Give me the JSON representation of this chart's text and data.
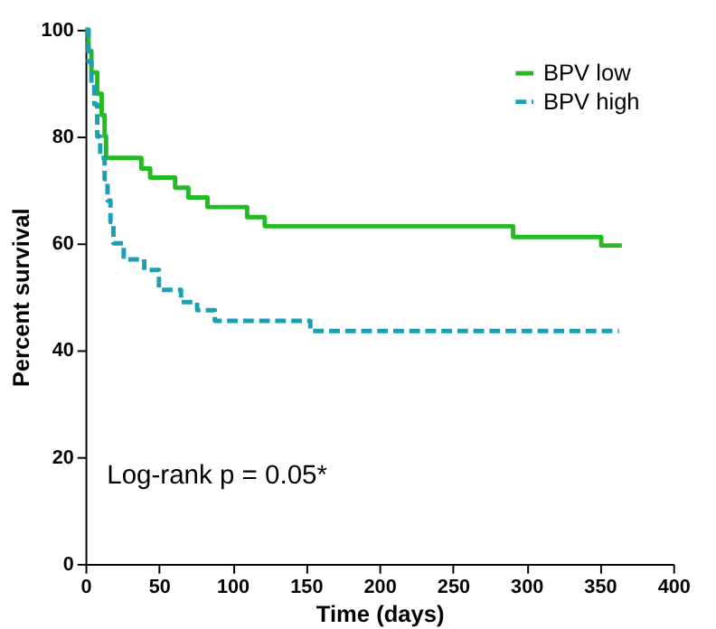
{
  "chart_data": {
    "type": "step",
    "xlabel": "Time (days)",
    "ylabel": "Percent survival",
    "xlim": [
      0,
      400
    ],
    "xticks": [
      0,
      50,
      100,
      150,
      200,
      250,
      300,
      350,
      400
    ],
    "ylim": [
      0,
      100
    ],
    "yticks": [
      0,
      20,
      40,
      60,
      80,
      100
    ],
    "grid": false,
    "legend": "top right",
    "marker": "none",
    "annotations": [
      "Log-rank p = 0.05*"
    ],
    "series": [
      {
        "name": "BPV low",
        "color": "#22bb22",
        "line_style": "solid",
        "x": [
          0,
          2,
          4,
          8,
          11,
          13,
          14,
          38,
          44,
          61,
          70,
          83,
          110,
          122,
          291,
          351,
          365
        ],
        "values": [
          100,
          96,
          92,
          88,
          84,
          80,
          76,
          74,
          72.3,
          70.4,
          68.6,
          66.8,
          64.9,
          63.2,
          61.2,
          59.6,
          59.6
        ]
      },
      {
        "name": "BPV high",
        "color": "#1a9fb5",
        "line_style": "dashed",
        "x": [
          0,
          2,
          4,
          6,
          8,
          10,
          13,
          15,
          17,
          19,
          26,
          40,
          50,
          65,
          76,
          88,
          153,
          363
        ],
        "values": [
          100,
          94,
          90,
          86,
          80,
          76,
          72,
          68,
          64,
          60,
          57,
          55,
          51.3,
          49,
          47.5,
          45.5,
          43.6,
          43.6
        ]
      }
    ]
  }
}
